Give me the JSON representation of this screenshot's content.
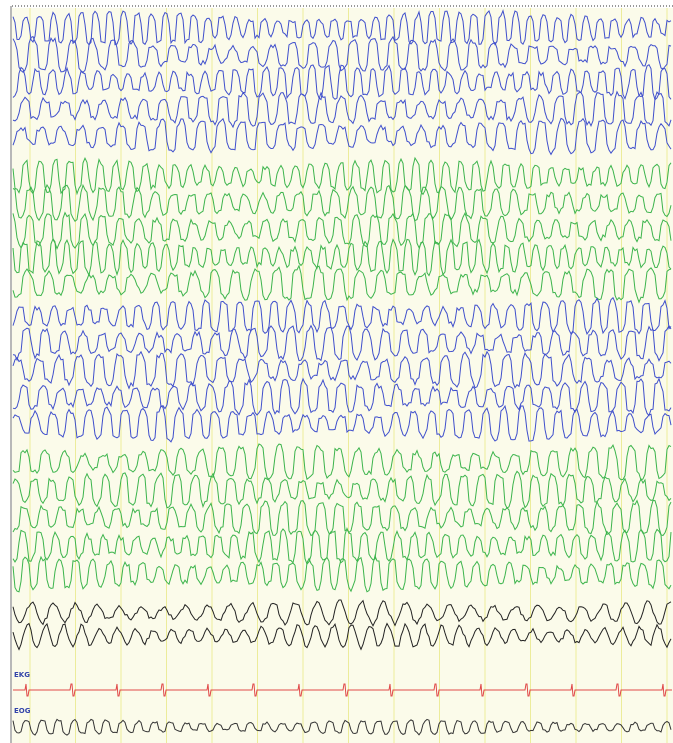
{
  "labels": {
    "ekg": "EKG",
    "eog": "EOG"
  }
}
